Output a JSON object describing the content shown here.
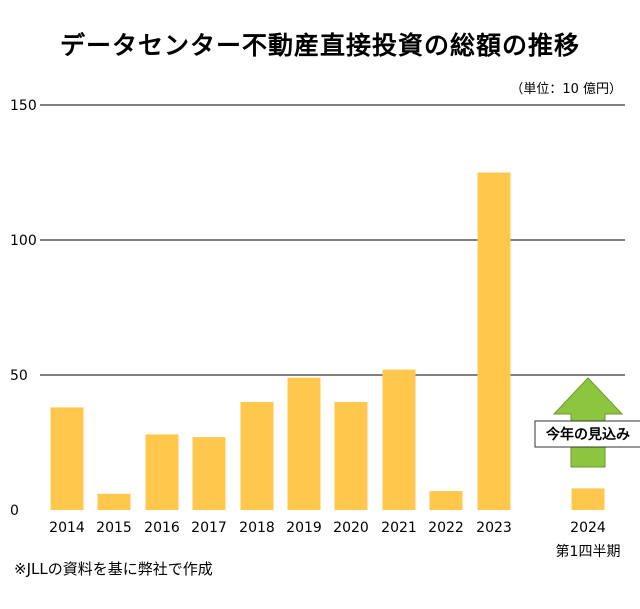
{
  "title": "データセンター不動産直接投資の総額の推移",
  "unit_label": "（単位：10 億円）",
  "source_note": "※JLLの資料を基に弊社で作成",
  "chart_data": {
    "type": "bar",
    "title": "データセンター不動産直接投資の総額の推移",
    "categories": [
      "2014",
      "2015",
      "2016",
      "2017",
      "2018",
      "2019",
      "2020",
      "2021",
      "2022",
      "2023",
      "2024"
    ],
    "values": [
      38,
      6,
      28,
      27,
      40,
      49,
      40,
      52,
      7,
      125,
      8
    ],
    "ylim": [
      0,
      150
    ],
    "yticks": [
      0,
      50,
      100,
      150
    ],
    "grid": true,
    "bar_color": "#ffc84d",
    "category_sublabels": {
      "2024": "第1四半期"
    },
    "annotation": {
      "text": "今年の見込み",
      "category": "2024",
      "arrow_color": "#8cc63f"
    }
  }
}
